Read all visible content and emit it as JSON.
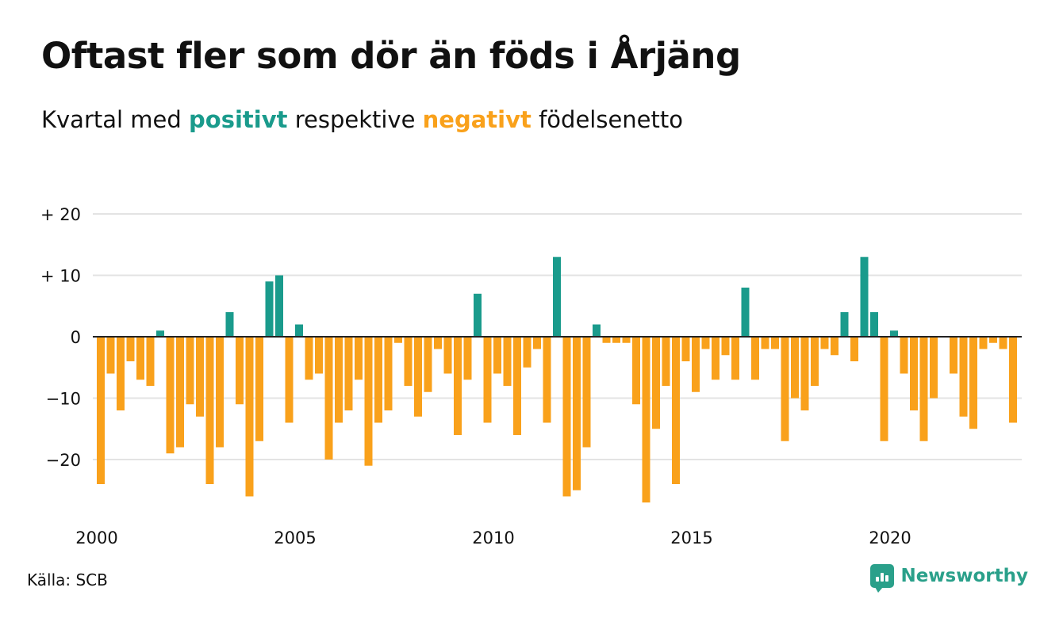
{
  "title": "Oftast fler som dör än föds i Årjäng",
  "subtitle": {
    "prefix": "Kvartal med",
    "positive_word": "positivt",
    "middle": "respektive",
    "negative_word": "negativt",
    "suffix": "födelsenetto"
  },
  "colors": {
    "positive": "#1a9b8c",
    "negative": "#f9a11b",
    "gridline": "#e3e3e3",
    "zero_line": "#222222",
    "brand": "#2aa08a"
  },
  "source": "Källa: SCB",
  "brand": {
    "name": "Newsworthy",
    "icon": "bar-chart-speech-bubble-icon"
  },
  "chart_data": {
    "type": "bar",
    "title": "Oftast fler som dör än föds i Årjäng",
    "subtitle": "Kvartal med positivt respektive negativt födelsenetto",
    "xlabel": "",
    "ylabel": "",
    "start_year": 2000,
    "periods_per_year": 4,
    "ylim": [
      -28,
      20
    ],
    "y_ticks": [
      {
        "value": 20,
        "label": "+ 20"
      },
      {
        "value": 10,
        "label": "+ 10"
      },
      {
        "value": 0,
        "label": "0"
      },
      {
        "value": -10,
        "label": "−10"
      },
      {
        "value": -20,
        "label": "−20"
      }
    ],
    "x_ticks": [
      {
        "year": 2000,
        "label": "2000"
      },
      {
        "year": 2005,
        "label": "2005"
      },
      {
        "year": 2010,
        "label": "2010"
      },
      {
        "year": 2015,
        "label": "2015"
      },
      {
        "year": 2020,
        "label": "2020"
      }
    ],
    "grid": true,
    "values": [
      -24,
      -6,
      -12,
      -4,
      -7,
      -8,
      1,
      -19,
      -18,
      -11,
      -13,
      -24,
      -18,
      4,
      -11,
      -26,
      -17,
      9,
      10,
      -14,
      2,
      -7,
      -6,
      -20,
      -14,
      -12,
      -7,
      -21,
      -14,
      -12,
      -1,
      -8,
      -13,
      -9,
      -2,
      -6,
      -16,
      -7,
      7,
      -14,
      -6,
      -8,
      -16,
      -5,
      -2,
      -14,
      13,
      -26,
      -25,
      -18,
      2,
      -1,
      -1,
      -1,
      -11,
      -27,
      -15,
      -8,
      -24,
      -4,
      -9,
      -2,
      -7,
      -3,
      -7,
      8,
      -7,
      -2,
      -2,
      -17,
      -10,
      -12,
      -8,
      -2,
      -3,
      4,
      -4,
      13,
      4,
      -17,
      1,
      -6,
      -12,
      -17,
      -10,
      0,
      -6,
      -13,
      -15,
      -2,
      -1,
      -2,
      -14
    ]
  }
}
